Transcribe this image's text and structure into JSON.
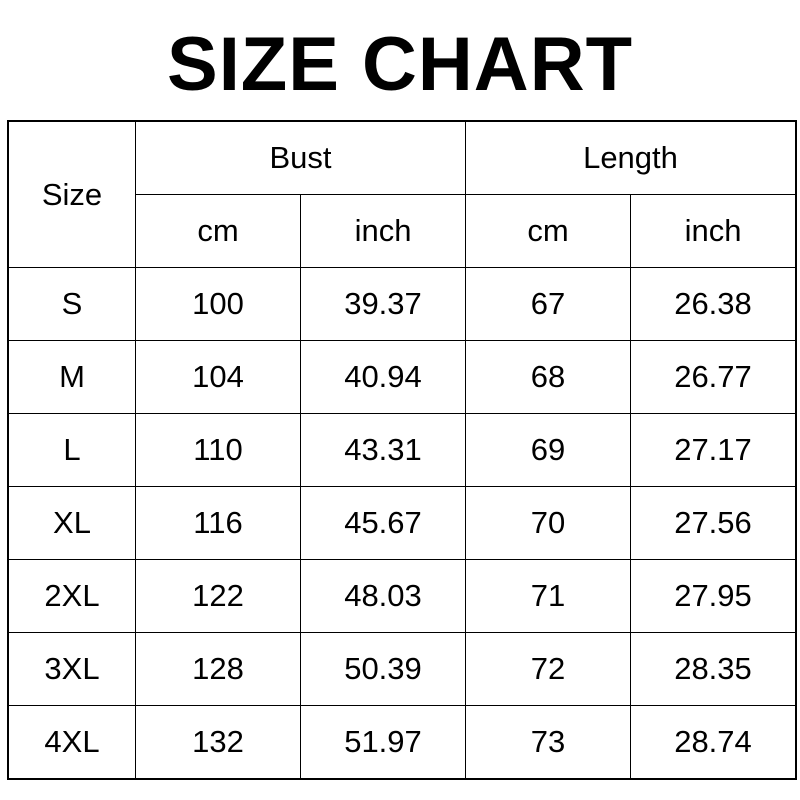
{
  "title": "SIZE CHART",
  "table": {
    "size_header": "Size",
    "groups": [
      "Bust",
      "Length"
    ],
    "units": [
      "cm",
      "inch",
      "cm",
      "inch"
    ],
    "rows": [
      [
        "S",
        "100",
        "39.37",
        "67",
        "26.38"
      ],
      [
        "M",
        "104",
        "40.94",
        "68",
        "26.77"
      ],
      [
        "L",
        "110",
        "43.31",
        "69",
        "27.17"
      ],
      [
        "XL",
        "116",
        "45.67",
        "70",
        "27.56"
      ],
      [
        "2XL",
        "122",
        "48.03",
        "71",
        "27.95"
      ],
      [
        "3XL",
        "128",
        "50.39",
        "72",
        "28.35"
      ],
      [
        "4XL",
        "132",
        "51.97",
        "73",
        "28.74"
      ]
    ]
  }
}
